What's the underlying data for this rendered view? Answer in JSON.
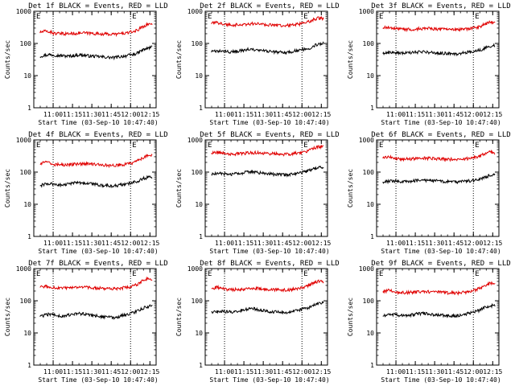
{
  "figure": {
    "xlabel": "Start Time (03-Sep-10 10:47:40)",
    "ylabel": "Counts/sec",
    "event_marker": "E",
    "colors": {
      "events": "#000000",
      "lld": "#e00000",
      "axis": "#000000"
    }
  },
  "chart_data": [
    {
      "type": "line",
      "title": "Det 1f BLACK = Events, RED = LLD",
      "xticks": [
        "11:00",
        "11:15",
        "11:30",
        "11:45",
        "12:00",
        "12:15"
      ],
      "yticks": [
        "1",
        "10",
        "100",
        "1000"
      ],
      "ylim": [
        1,
        1000
      ],
      "log_y": true,
      "series": [
        {
          "name": "Events",
          "color": "#000000",
          "values": [
            40,
            43,
            45,
            44,
            42,
            41,
            40,
            42,
            44,
            43,
            41,
            40,
            39,
            38,
            37,
            36,
            38,
            40,
            42,
            45,
            50,
            62,
            70,
            78
          ]
        },
        {
          "name": "LLD",
          "color": "#e00000",
          "values": [
            220,
            240,
            230,
            205,
            200,
            200,
            202,
            205,
            210,
            212,
            208,
            205,
            200,
            198,
            195,
            193,
            198,
            205,
            215,
            230,
            260,
            330,
            390,
            410
          ]
        }
      ]
    },
    {
      "type": "line",
      "title": "Det 2f BLACK = Events, RED = LLD",
      "xticks": [
        "11:00",
        "11:15",
        "11:30",
        "11:45",
        "12:00",
        "12:15"
      ],
      "yticks": [
        "1",
        "10",
        "100",
        "1000"
      ],
      "ylim": [
        1,
        1000
      ],
      "log_y": true,
      "series": [
        {
          "name": "Events",
          "color": "#000000",
          "values": [
            55,
            57,
            58,
            56,
            55,
            56,
            60,
            64,
            66,
            62,
            60,
            58,
            56,
            54,
            53,
            52,
            54,
            58,
            62,
            66,
            70,
            85,
            98,
            100
          ]
        },
        {
          "name": "LLD",
          "color": "#e00000",
          "values": [
            420,
            440,
            430,
            390,
            380,
            380,
            385,
            395,
            405,
            410,
            400,
            390,
            380,
            372,
            365,
            360,
            368,
            380,
            400,
            430,
            470,
            560,
            620,
            600
          ]
        }
      ]
    },
    {
      "type": "line",
      "title": "Det 3f BLACK = Events, RED = LLD",
      "xticks": [
        "11:00",
        "11:15",
        "11:30",
        "11:45",
        "12:00",
        "12:15"
      ],
      "yticks": [
        "1",
        "10",
        "100",
        "1000"
      ],
      "ylim": [
        1,
        1000
      ],
      "log_y": true,
      "series": [
        {
          "name": "Events",
          "color": "#000000",
          "values": [
            50,
            52,
            53,
            51,
            50,
            50,
            52,
            54,
            55,
            54,
            52,
            51,
            50,
            49,
            48,
            47,
            49,
            52,
            55,
            58,
            62,
            72,
            82,
            88
          ]
        },
        {
          "name": "LLD",
          "color": "#e00000",
          "values": [
            300,
            320,
            310,
            280,
            275,
            275,
            278,
            285,
            290,
            292,
            288,
            282,
            276,
            272,
            268,
            265,
            270,
            280,
            292,
            310,
            340,
            400,
            450,
            440
          ]
        }
      ]
    },
    {
      "type": "line",
      "title": "Det 4f BLACK = Events, RED = LLD",
      "xticks": [
        "11:00",
        "11:15",
        "11:30",
        "11:45",
        "12:00",
        "12:15"
      ],
      "yticks": [
        "1",
        "10",
        "100",
        "1000"
      ],
      "ylim": [
        1,
        1000
      ],
      "log_y": true,
      "series": [
        {
          "name": "Events",
          "color": "#000000",
          "values": [
            38,
            42,
            44,
            42,
            40,
            40,
            43,
            46,
            48,
            46,
            44,
            42,
            40,
            39,
            38,
            37,
            39,
            42,
            44,
            47,
            52,
            62,
            68,
            70
          ]
        },
        {
          "name": "LLD",
          "color": "#e00000",
          "values": [
            180,
            200,
            195,
            175,
            170,
            170,
            172,
            176,
            180,
            182,
            178,
            174,
            170,
            167,
            164,
            162,
            166,
            172,
            180,
            195,
            220,
            280,
            320,
            330
          ]
        }
      ]
    },
    {
      "type": "line",
      "title": "Det 5f BLACK = Events, RED = LLD",
      "xticks": [
        "11:00",
        "11:15",
        "11:30",
        "11:45",
        "12:00",
        "12:15"
      ],
      "yticks": [
        "1",
        "10",
        "100",
        "1000"
      ],
      "ylim": [
        1,
        1000
      ],
      "log_y": true,
      "series": [
        {
          "name": "Events",
          "color": "#000000",
          "values": [
            85,
            88,
            90,
            88,
            86,
            88,
            92,
            98,
            105,
            102,
            96,
            92,
            88,
            85,
            83,
            82,
            85,
            90,
            96,
            102,
            110,
            128,
            140,
            142
          ]
        },
        {
          "name": "LLD",
          "color": "#e00000",
          "values": [
            400,
            420,
            410,
            380,
            370,
            372,
            378,
            388,
            398,
            402,
            395,
            385,
            376,
            370,
            365,
            360,
            368,
            382,
            400,
            430,
            470,
            560,
            610,
            600
          ]
        }
      ]
    },
    {
      "type": "line",
      "title": "Det 6f BLACK = Events, RED = LLD",
      "xticks": [
        "11:00",
        "11:15",
        "11:30",
        "11:45",
        "12:00",
        "12:15"
      ],
      "yticks": [
        "1",
        "10",
        "100",
        "1000"
      ],
      "ylim": [
        1,
        1000
      ],
      "log_y": true,
      "series": [
        {
          "name": "Events",
          "color": "#000000",
          "values": [
            50,
            52,
            53,
            52,
            51,
            51,
            53,
            55,
            57,
            56,
            54,
            53,
            52,
            51,
            50,
            49,
            50,
            52,
            54,
            57,
            60,
            70,
            80,
            85
          ]
        },
        {
          "name": "LLD",
          "color": "#e00000",
          "values": [
            270,
            290,
            285,
            260,
            255,
            255,
            258,
            263,
            268,
            270,
            266,
            262,
            258,
            255,
            252,
            250,
            254,
            262,
            272,
            290,
            320,
            380,
            420,
            400
          ]
        }
      ]
    },
    {
      "type": "line",
      "title": "Det 7f BLACK = Events, RED = LLD",
      "xticks": [
        "11:00",
        "11:15",
        "11:30",
        "11:45",
        "12:00",
        "12:15"
      ],
      "yticks": [
        "1",
        "10",
        "100",
        "1000"
      ],
      "ylim": [
        1,
        1000
      ],
      "log_y": true,
      "series": [
        {
          "name": "Events",
          "color": "#000000",
          "values": [
            32,
            36,
            38,
            36,
            34,
            34,
            36,
            38,
            40,
            39,
            37,
            35,
            33,
            32,
            31,
            30,
            32,
            35,
            38,
            42,
            48,
            58,
            66,
            70
          ]
        },
        {
          "name": "LLD",
          "color": "#e00000",
          "values": [
            260,
            280,
            275,
            250,
            245,
            245,
            248,
            254,
            260,
            262,
            258,
            252,
            246,
            242,
            238,
            236,
            240,
            250,
            262,
            285,
            320,
            420,
            480,
            470
          ]
        }
      ]
    },
    {
      "type": "line",
      "title": "Det 8f BLACK = Events, RED = LLD",
      "xticks": [
        "11:00",
        "11:15",
        "11:30",
        "11:45",
        "12:00",
        "12:15"
      ],
      "yticks": [
        "1",
        "10",
        "100",
        "1000"
      ],
      "ylim": [
        1,
        1000
      ],
      "log_y": true,
      "series": [
        {
          "name": "Events",
          "color": "#000000",
          "values": [
            44,
            46,
            48,
            46,
            45,
            46,
            50,
            55,
            58,
            56,
            52,
            49,
            46,
            45,
            44,
            43,
            45,
            48,
            52,
            56,
            62,
            74,
            82,
            85
          ]
        },
        {
          "name": "LLD",
          "color": "#e00000",
          "values": [
            240,
            260,
            255,
            230,
            225,
            225,
            228,
            234,
            240,
            242,
            238,
            232,
            226,
            222,
            218,
            215,
            220,
            230,
            245,
            270,
            305,
            360,
            400,
            380
          ]
        }
      ]
    },
    {
      "type": "line",
      "title": "Det 9f BLACK = Events, RED = LLD",
      "xticks": [
        "11:00",
        "11:15",
        "11:30",
        "11:45",
        "12:00",
        "12:15"
      ],
      "yticks": [
        "1",
        "10",
        "100",
        "1000"
      ],
      "ylim": [
        1,
        1000
      ],
      "log_y": true,
      "series": [
        {
          "name": "Events",
          "color": "#000000",
          "values": [
            33,
            36,
            38,
            36,
            35,
            35,
            37,
            39,
            41,
            40,
            38,
            37,
            36,
            35,
            34,
            34,
            36,
            39,
            42,
            46,
            52,
            62,
            70,
            72
          ]
        },
        {
          "name": "LLD",
          "color": "#e00000",
          "values": [
            190,
            210,
            205,
            185,
            180,
            180,
            183,
            188,
            192,
            194,
            190,
            186,
            182,
            179,
            176,
            174,
            178,
            186,
            196,
            215,
            245,
            310,
            350,
            340
          ]
        }
      ]
    }
  ]
}
